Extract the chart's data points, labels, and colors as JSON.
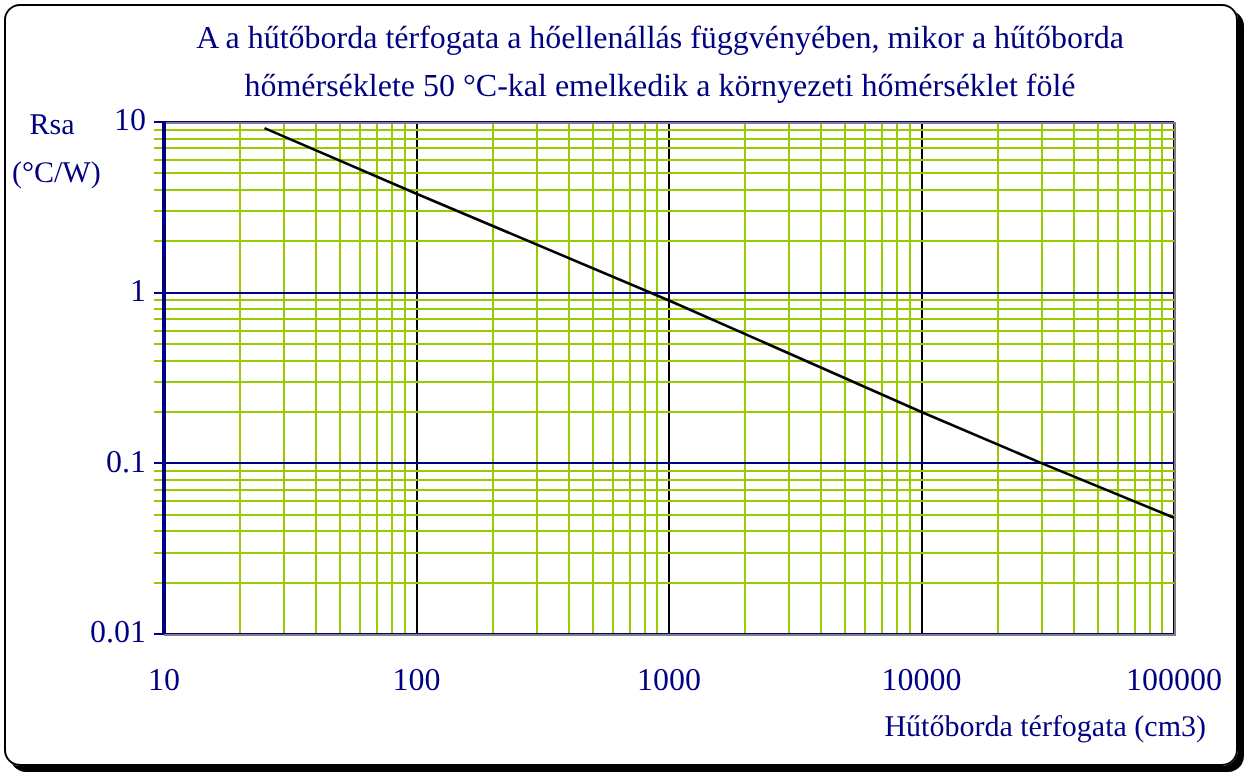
{
  "chart_data": {
    "type": "line",
    "title": "A a hűtőborda térfogata a hőellenállás függvényében, mikor a hűtőborda\nhőmérséklete 50 °C-kal emelkedik a környezeti hőmérséklet fölé",
    "xlabel": "Hűtőborda térfogata (cm3)",
    "ylabel": "Rsa (°C/W)",
    "x": [
      25,
      100,
      1000,
      10000,
      30000,
      100000
    ],
    "series": [
      {
        "color": "#000000",
        "values": [
          9.2,
          3.8,
          0.9,
          0.2,
          0.1,
          0.048
        ]
      }
    ],
    "log": "xy",
    "xlim": [
      10,
      100000
    ],
    "ylim": [
      0.01,
      10
    ],
    "xticks": [
      10,
      {
        "value": 20,
        "label": null
      },
      {
        "value": 30,
        "label": null
      },
      {
        "value": 40,
        "label": null
      },
      {
        "value": 50,
        "label": null
      },
      {
        "value": 60,
        "label": null
      },
      {
        "value": 70,
        "label": null
      },
      {
        "value": 80,
        "label": null
      },
      {
        "value": 90,
        "label": null
      },
      100,
      {
        "value": 200,
        "label": null
      },
      {
        "value": 300,
        "label": null
      },
      {
        "value": 400,
        "label": null
      },
      {
        "value": 500,
        "label": null
      },
      {
        "value": 600,
        "label": null
      },
      {
        "value": 700,
        "label": null
      },
      {
        "value": 800,
        "label": null
      },
      {
        "value": 900,
        "label": null
      },
      1000,
      {
        "value": 2000,
        "label": null
      },
      {
        "value": 3000,
        "label": null
      },
      {
        "value": 4000,
        "label": null
      },
      {
        "value": 5000,
        "label": null
      },
      {
        "value": 6000,
        "label": null
      },
      {
        "value": 7000,
        "label": null
      },
      {
        "value": 8000,
        "label": null
      },
      {
        "value": 9000,
        "label": null
      },
      10000,
      {
        "value": 20000,
        "label": null
      },
      {
        "value": 30000,
        "label": null
      },
      {
        "value": 40000,
        "label": null
      },
      {
        "value": 50000,
        "label": null
      },
      {
        "value": 60000,
        "label": null
      },
      {
        "value": 70000,
        "label": null
      },
      {
        "value": 80000,
        "label": null
      },
      {
        "value": 90000,
        "label": null
      },
      100000
    ],
    "yticks": [
      0.01,
      {
        "value": 0.02,
        "label": null
      },
      {
        "value": 0.03,
        "label": null
      },
      {
        "value": 0.04,
        "label": null
      },
      {
        "value": 0.05,
        "label": null
      },
      {
        "value": 0.06,
        "label": null
      },
      {
        "value": 0.07,
        "label": null
      },
      {
        "value": 0.08,
        "label": null
      },
      {
        "value": 0.09,
        "label": null
      },
      0.1,
      {
        "value": 0.2,
        "label": null
      },
      {
        "value": 0.3,
        "label": null
      },
      {
        "value": 0.4,
        "label": null
      },
      {
        "value": 0.5,
        "label": null
      },
      {
        "value": 0.6,
        "label": null
      },
      {
        "value": 0.7,
        "label": null
      },
      {
        "value": 0.8,
        "label": null
      },
      {
        "value": 0.9,
        "label": null
      },
      1,
      {
        "value": 2,
        "label": null
      },
      {
        "value": 3,
        "label": null
      },
      {
        "value": 4,
        "label": null
      },
      {
        "value": 5,
        "label": null
      },
      {
        "value": 6,
        "label": null
      },
      {
        "value": 7,
        "label": null
      },
      {
        "value": 8,
        "label": null
      },
      {
        "value": 9,
        "label": null
      },
      10
    ],
    "grid": true,
    "legend": false,
    "marker": "none",
    "line_style": "solid"
  }
}
